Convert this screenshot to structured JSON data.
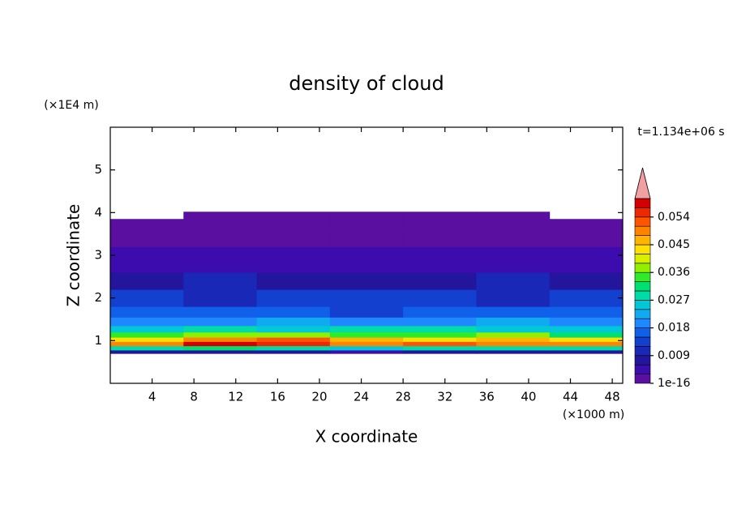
{
  "chart_data": {
    "type": "contour",
    "title": "density of cloud",
    "xlabel": "X coordinate",
    "ylabel": "Z coordinate",
    "x_unit": "(×1000 m)",
    "y_unit": "(×1E4 m)",
    "time_label": "t=1.134e+06 s",
    "xlim": [
      0,
      49
    ],
    "ylim": [
      0,
      6
    ],
    "xticks": [
      4,
      8,
      12,
      16,
      20,
      24,
      28,
      32,
      36,
      40,
      44,
      48
    ],
    "yticks": [
      1,
      2,
      3,
      4,
      5
    ],
    "field": {
      "x_edges": [
        0,
        7,
        14,
        21,
        28,
        35,
        42,
        49
      ],
      "z_edges": [
        0.7,
        0.78,
        0.88,
        0.98,
        1.08,
        1.2,
        1.35,
        1.55,
        1.8,
        2.2,
        2.6,
        3.2,
        3.6,
        3.85,
        4.02
      ],
      "values": [
        [
          0.006,
          0.007,
          0.006,
          0.005,
          0.006,
          0.007,
          0.006
        ],
        [
          0.027,
          0.03,
          0.028,
          0.026,
          0.029,
          0.028,
          0.027
        ],
        [
          0.05,
          0.058,
          0.055,
          0.05,
          0.052,
          0.05,
          0.048
        ],
        [
          0.044,
          0.048,
          0.052,
          0.045,
          0.043,
          0.046,
          0.042
        ],
        [
          0.034,
          0.036,
          0.038,
          0.035,
          0.033,
          0.037,
          0.032
        ],
        [
          0.026,
          0.028,
          0.025,
          0.027,
          0.029,
          0.026,
          0.025
        ],
        [
          0.02,
          0.019,
          0.021,
          0.018,
          0.02,
          0.022,
          0.019
        ],
        [
          0.016,
          0.015,
          0.017,
          0.014,
          0.016,
          0.015,
          0.017
        ],
        [
          0.012,
          0.011,
          0.012,
          0.013,
          0.012,
          0.011,
          0.013
        ],
        [
          0.008,
          0.009,
          0.007,
          0.008,
          0.008,
          0.009,
          0.008
        ],
        [
          0.004,
          0.005,
          0.004,
          0.004,
          0.005,
          0.004,
          0.004
        ],
        [
          0.002,
          0.001,
          0.001,
          0.001,
          0.001,
          0.002,
          0.002
        ],
        [
          0.0005,
          0.0005,
          0.0005,
          0.0005,
          0.0005,
          0.0005,
          0.0005
        ],
        [
          null,
          0.0005,
          0.0005,
          0.0005,
          0.0005,
          0.0005,
          null
        ]
      ]
    },
    "colorbar": {
      "clim": [
        1e-16,
        0.06
      ],
      "levels": [
        1e-16,
        0.003,
        0.006,
        0.009,
        0.012,
        0.015,
        0.018,
        0.021,
        0.024,
        0.027,
        0.03,
        0.033,
        0.036,
        0.039,
        0.042,
        0.045,
        0.048,
        0.051,
        0.054,
        0.057,
        0.06
      ],
      "colors": [
        "#5a0fa0",
        "#3c0cae",
        "#24169c",
        "#1a28b8",
        "#1440d0",
        "#1060ea",
        "#2088ff",
        "#10aaf0",
        "#00c8d8",
        "#00dca8",
        "#00e070",
        "#30ec28",
        "#90f000",
        "#d8f000",
        "#ffe000",
        "#ffb400",
        "#ff8400",
        "#ff5400",
        "#f02800",
        "#d40000"
      ],
      "extend_color": "#f0a0a0",
      "ticks": [
        1e-16,
        0.009,
        0.018,
        0.027,
        0.036,
        0.045,
        0.054
      ]
    }
  }
}
